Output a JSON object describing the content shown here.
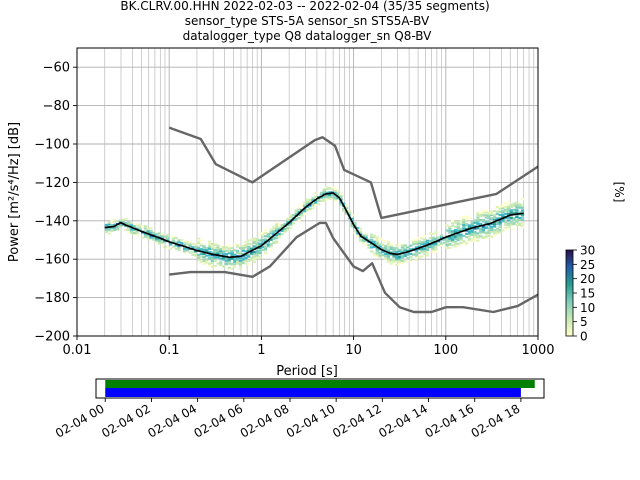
{
  "title_lines": [
    "BK.CLRV.00.HHN   2022-02-03 -- 2022-02-04  (35/35 segments)",
    "sensor_type STS-5A sensor_sn STS5A-BV",
    "datalogger_type Q8 datalogger_sn Q8-BV"
  ],
  "chart_data": {
    "type": "heatmap",
    "xlabel": "Period [s]",
    "ylabel": "Power [m²/s⁴/Hz] [dB]",
    "xscale": "log",
    "xlim": [
      0.01,
      1000
    ],
    "ylim": [
      -200,
      -50
    ],
    "x_ticks": [
      {
        "v": 0.01,
        "label": "0.01"
      },
      {
        "v": 0.1,
        "label": "0.1"
      },
      {
        "v": 1,
        "label": "1"
      },
      {
        "v": 10,
        "label": "10"
      },
      {
        "v": 100,
        "label": "100"
      },
      {
        "v": 1000,
        "label": "1000"
      }
    ],
    "y_ticks": [
      {
        "v": -60,
        "label": "−60"
      },
      {
        "v": -80,
        "label": "−80"
      },
      {
        "v": -100,
        "label": "−100"
      },
      {
        "v": -120,
        "label": "−120"
      },
      {
        "v": -140,
        "label": "−140"
      },
      {
        "v": -160,
        "label": "−160"
      },
      {
        "v": -180,
        "label": "−180"
      },
      {
        "v": -200,
        "label": "−200"
      }
    ],
    "grid": true,
    "colorbar": {
      "label": "[%]",
      "range": [
        0,
        30
      ],
      "ticks": [
        {
          "v": 0,
          "label": "0"
        },
        {
          "v": 5,
          "label": "5"
        },
        {
          "v": 10,
          "label": "10"
        },
        {
          "v": 15,
          "label": "15"
        },
        {
          "v": 20,
          "label": "20"
        },
        {
          "v": 25,
          "label": "25"
        },
        {
          "v": 30,
          "label": "30"
        }
      ]
    },
    "series": [
      {
        "role": "noise-model-high",
        "color": "#666666",
        "points": [
          [
            0.1,
            -91.5
          ],
          [
            0.22,
            -97.4
          ],
          [
            0.32,
            -110.5
          ],
          [
            0.8,
            -120
          ],
          [
            3.8,
            -98
          ],
          [
            4.6,
            -96.5
          ],
          [
            6.3,
            -101
          ],
          [
            7.9,
            -113.5
          ],
          [
            15.4,
            -120
          ],
          [
            20,
            -138.5
          ],
          [
            354.8,
            -126
          ],
          [
            10000,
            -80
          ]
        ]
      },
      {
        "role": "noise-model-low",
        "color": "#666666",
        "points": [
          [
            0.1,
            -168
          ],
          [
            0.17,
            -166.7
          ],
          [
            0.4,
            -166.7
          ],
          [
            0.8,
            -169.2
          ],
          [
            1.24,
            -163.7
          ],
          [
            2.4,
            -148.6
          ],
          [
            4.3,
            -141.1
          ],
          [
            5,
            -141.1
          ],
          [
            6,
            -149
          ],
          [
            10,
            -163.8
          ],
          [
            12.6,
            -166.2
          ],
          [
            15.9,
            -162.1
          ],
          [
            21.9,
            -177.5
          ],
          [
            31.6,
            -185
          ],
          [
            45,
            -187.5
          ],
          [
            70,
            -187.5
          ],
          [
            101,
            -185
          ],
          [
            154,
            -185
          ],
          [
            328,
            -187.5
          ],
          [
            600,
            -184.4
          ],
          [
            10000,
            -151.5
          ]
        ]
      },
      {
        "role": "mode",
        "color": "#000000",
        "points": [
          [
            0.02,
            -143.5
          ],
          [
            0.025,
            -143
          ],
          [
            0.03,
            -141
          ],
          [
            0.035,
            -142.5
          ],
          [
            0.05,
            -145.5
          ],
          [
            0.08,
            -149
          ],
          [
            0.1,
            -151
          ],
          [
            0.15,
            -153.5
          ],
          [
            0.2,
            -155.5
          ],
          [
            0.3,
            -157.5
          ],
          [
            0.45,
            -159
          ],
          [
            0.6,
            -158.5
          ],
          [
            0.75,
            -156
          ],
          [
            1,
            -153
          ],
          [
            1.5,
            -146
          ],
          [
            2,
            -141
          ],
          [
            3,
            -133
          ],
          [
            4,
            -128.5
          ],
          [
            5,
            -126
          ],
          [
            6,
            -125.5
          ],
          [
            7,
            -128
          ],
          [
            8,
            -133
          ],
          [
            10,
            -142
          ],
          [
            12,
            -148
          ],
          [
            15,
            -151
          ],
          [
            20,
            -155
          ],
          [
            25,
            -157
          ],
          [
            30,
            -157.5
          ],
          [
            40,
            -156
          ],
          [
            60,
            -153
          ],
          [
            80,
            -150.5
          ],
          [
            100,
            -148.5
          ],
          [
            150,
            -145.5
          ],
          [
            200,
            -143.5
          ],
          [
            300,
            -141.5
          ],
          [
            400,
            -139
          ],
          [
            500,
            -137
          ],
          [
            700,
            -136
          ]
        ]
      }
    ],
    "data_time_axis": {
      "ticks": [
        "02-04 00",
        "02-04 02",
        "02-04 04",
        "02-04 06",
        "02-04 08",
        "02-04 10",
        "02-04 12",
        "02-04 14",
        "02-04 16",
        "02-04 18"
      ],
      "range_hours": [
        -0.4,
        19.0
      ],
      "bars": [
        {
          "role": "data",
          "color": "#008000",
          "start_h": 0,
          "end_h": 18.6
        },
        {
          "role": "used",
          "color": "#0000ff",
          "start_h": 0,
          "end_h": 18.0
        }
      ]
    }
  }
}
